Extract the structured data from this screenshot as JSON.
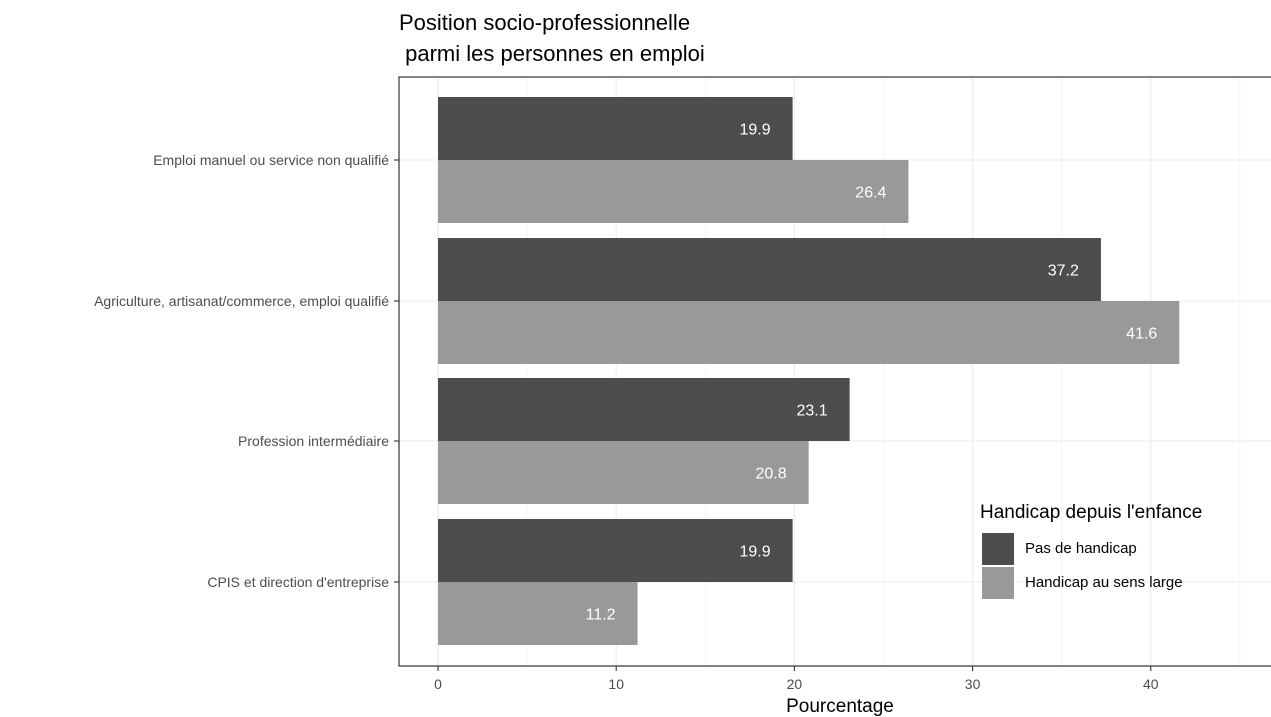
{
  "chart_data": {
    "type": "bar",
    "orientation": "horizontal",
    "title_line1": "Position socio-professionnelle",
    "title_line2": " parmi les personnes en emploi",
    "xlabel": "Pourcentage",
    "ylabel": "",
    "categories": [
      "Emploi manuel ou service non qualifié",
      "Agriculture, artisanat/commerce, emploi qualifié",
      "Profession intermédiaire",
      "CPIS et direction d'entreprise"
    ],
    "series": [
      {
        "name": "Pas de handicap",
        "color": "#4d4d4d",
        "values": [
          19.9,
          37.2,
          23.1,
          19.9
        ]
      },
      {
        "name": "Handicap au sens large",
        "color": "#999999",
        "values": [
          26.4,
          41.6,
          20.8,
          11.2
        ]
      }
    ],
    "xlim": [
      -2.2,
      46
    ],
    "xticks": [
      0,
      10,
      20,
      30,
      40
    ],
    "grid": true,
    "legend": {
      "title": "Handicap depuis l'enfance",
      "position": "bottom-right"
    }
  }
}
